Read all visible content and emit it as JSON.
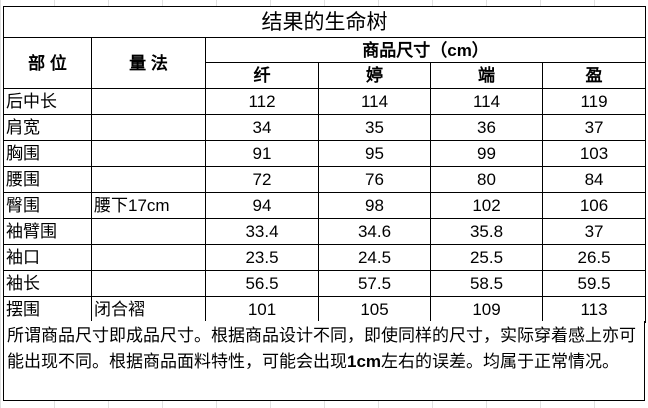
{
  "title": "结果的生命树",
  "header": {
    "part": "部 位",
    "method": "量 法",
    "size_group": "商品尺寸（cm）",
    "sizes": [
      "纤",
      "婷",
      "端",
      "盈"
    ]
  },
  "rows": [
    {
      "part": "后中长",
      "method": "",
      "values": [
        "112",
        "114",
        "114",
        "119"
      ]
    },
    {
      "part": "肩宽",
      "method": "",
      "values": [
        "34",
        "35",
        "36",
        "37"
      ]
    },
    {
      "part": "胸围",
      "method": "",
      "values": [
        "91",
        "95",
        "99",
        "103"
      ]
    },
    {
      "part": "腰围",
      "method": "",
      "values": [
        "72",
        "76",
        "80",
        "84"
      ]
    },
    {
      "part": "臀围",
      "method": "腰下17cm",
      "values": [
        "94",
        "98",
        "102",
        "106"
      ]
    },
    {
      "part": "袖臂围",
      "method": "",
      "values": [
        "33.4",
        "34.6",
        "35.8",
        "37"
      ]
    },
    {
      "part": "袖口",
      "method": "",
      "values": [
        "23.5",
        "24.5",
        "25.5",
        "26.5"
      ]
    },
    {
      "part": "袖长",
      "method": "",
      "values": [
        "56.5",
        "57.5",
        "58.5",
        "59.5"
      ]
    },
    {
      "part": "摆围",
      "method": "闭合褶",
      "values": [
        "101",
        "105",
        "109",
        "113"
      ]
    }
  ],
  "note": {
    "before": "所谓商品尺寸即成品尺寸。根据商品设计不同，即使同样的尺寸，实际穿着感上亦可能出现不同。根据商品面料特性，可能会出现",
    "bold": "1cm",
    "after": "左右的误差。均属于正常情况。"
  }
}
